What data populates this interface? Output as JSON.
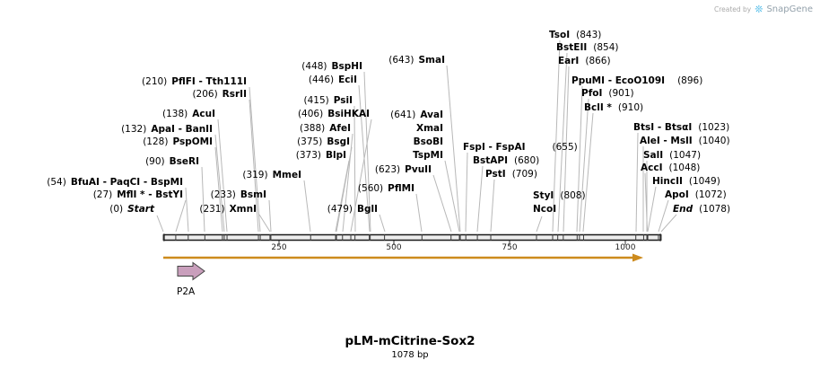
{
  "branding": {
    "created_by": "Created by",
    "brand": "SnapGene"
  },
  "map": {
    "title": "pLM-mCitrine-Sox2",
    "length_label": "1078 bp",
    "length_bp": 1078,
    "ruler_ticks": [
      "250",
      "500",
      "750",
      "1000"
    ],
    "orf_color": "#CD8B1D"
  },
  "features": [
    {
      "label": "P2A",
      "color": "#C99FBC"
    }
  ],
  "sites": [
    {
      "name": "Start",
      "pos": "(0)",
      "bp": 0
    },
    {
      "name": "MflI * - BstYI",
      "pos": "(27)",
      "bp": 27
    },
    {
      "name": "BfuAI - PaqCI - BspMI",
      "pos": "(54)",
      "bp": 54
    },
    {
      "name": "BseRI",
      "pos": "(90)",
      "bp": 90
    },
    {
      "name": "PspOMI",
      "pos": "(128)",
      "bp": 128
    },
    {
      "name": "ApaI - BanII",
      "pos": "(132)",
      "bp": 132
    },
    {
      "name": "AcuI",
      "pos": "(138)",
      "bp": 138
    },
    {
      "name": "RsrII",
      "pos": "(206)",
      "bp": 206
    },
    {
      "name": "PflFI - Tth111I",
      "pos": "(210)",
      "bp": 210
    },
    {
      "name": "XmnI",
      "pos": "(231)",
      "bp": 231
    },
    {
      "name": "BsmI",
      "pos": "(233)",
      "bp": 233
    },
    {
      "name": "MmeI",
      "pos": "(319)",
      "bp": 319
    },
    {
      "name": "BlpI",
      "pos": "(373)",
      "bp": 373
    },
    {
      "name": "BsgI",
      "pos": "(375)",
      "bp": 375
    },
    {
      "name": "AfeI",
      "pos": "(388)",
      "bp": 388
    },
    {
      "name": "BsiHKAI",
      "pos": "(406)",
      "bp": 406
    },
    {
      "name": "PsiI",
      "pos": "(415)",
      "bp": 415
    },
    {
      "name": "EciI",
      "pos": "(446)",
      "bp": 446
    },
    {
      "name": "BspHI",
      "pos": "(448)",
      "bp": 448
    },
    {
      "name": "BglI",
      "pos": "(479)",
      "bp": 479
    },
    {
      "name": "PflMI",
      "pos": "(560)",
      "bp": 560
    },
    {
      "name": "PvuII",
      "pos": "(623)",
      "bp": 623
    },
    {
      "name": "AvaI",
      "pos": "(641)",
      "bp": 641,
      "also": [
        "XmaI",
        "BsoBI",
        "TspMI"
      ]
    },
    {
      "name": "SmaI",
      "pos": "(643)",
      "bp": 643
    },
    {
      "name": "FspI - FspAI",
      "pos": "(655)",
      "bp": 655
    },
    {
      "name": "BstAPI",
      "pos": "(680)",
      "bp": 680
    },
    {
      "name": "PstI",
      "pos": "(709)",
      "bp": 709
    },
    {
      "name": "StyI",
      "pos": "(808)",
      "bp": 808,
      "also": [
        "NcoI"
      ]
    },
    {
      "name": "TsoI",
      "pos": "(843)",
      "bp": 843
    },
    {
      "name": "BstEII",
      "pos": "(854)",
      "bp": 854
    },
    {
      "name": "EarI",
      "pos": "(866)",
      "bp": 866
    },
    {
      "name": "PpuMI - EcoO109I",
      "pos": "(896)",
      "bp": 896
    },
    {
      "name": "PfoI",
      "pos": "(901)",
      "bp": 901
    },
    {
      "name": "BclI *",
      "pos": "(910)",
      "bp": 910
    },
    {
      "name": "BtsI - BtsαI",
      "pos": "(1023)",
      "bp": 1023
    },
    {
      "name": "AleI - MslI",
      "pos": "(1040)",
      "bp": 1040
    },
    {
      "name": "SalI",
      "pos": "(1047)",
      "bp": 1047
    },
    {
      "name": "AccI",
      "pos": "(1048)",
      "bp": 1048
    },
    {
      "name": "HincII",
      "pos": "(1049)",
      "bp": 1049
    },
    {
      "name": "ApoI",
      "pos": "(1072)",
      "bp": 1072
    },
    {
      "name": "End",
      "pos": "(1078)",
      "bp": 1078
    }
  ]
}
